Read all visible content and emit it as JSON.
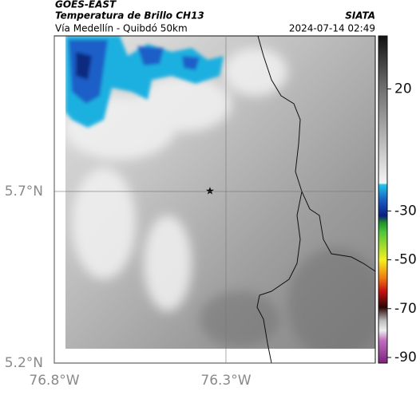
{
  "header": {
    "satellite": "GOES-EAST",
    "product": "Temperatura de Brillo CH13",
    "source": "SIATA",
    "route": "Vía Medellín - Quibdó 50km",
    "datetime": "2024-07-14 02:49"
  },
  "map": {
    "latlim": [
      5.2,
      6.153
    ],
    "lonlim": [
      -76.8,
      -75.865
    ],
    "latticks": [
      {
        "value": 5.7,
        "label": "5.7°N"
      },
      {
        "value": 5.2,
        "label": "5.2°N"
      }
    ],
    "lonticks": [
      {
        "value": -76.8,
        "label": "76.8°W"
      },
      {
        "value": -76.3,
        "label": "76.3°W"
      }
    ]
  },
  "colorbar": {
    "lim": [
      -92.3,
      41.7
    ],
    "ticks": [
      20,
      -30,
      -50,
      -70,
      -90
    ]
  }
}
